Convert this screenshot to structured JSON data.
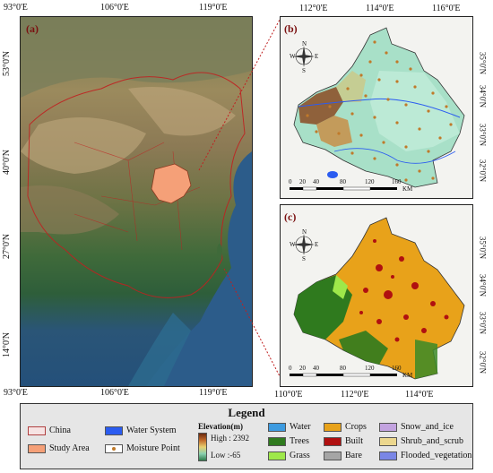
{
  "map_a": {
    "label": "(a)",
    "lon_ticks_top": [
      "93°0'E",
      "106°0'E",
      "119°0'E"
    ],
    "lon_ticks_bottom": [
      "93°0'E",
      "106°0'E",
      "119°0'E"
    ],
    "lat_ticks": [
      "53°0'N",
      "40°0'N",
      "27°0'N",
      "14°0'N"
    ]
  },
  "map_b": {
    "label": "(b)",
    "lon_ticks_top": [
      "112°0'E",
      "114°0'E",
      "116°0'E"
    ],
    "lat_ticks_right": [
      "35°0'N",
      "34°0'N",
      "33°0'N",
      "32°0'N"
    ],
    "scale_ticks": [
      "0",
      "20",
      "40",
      "80",
      "120",
      "160"
    ],
    "scale_unit": "KM"
  },
  "map_c": {
    "label": "(c)",
    "lon_ticks_bottom": [
      "110°0'E",
      "112°0'E",
      "114°0'E"
    ],
    "lat_ticks_right": [
      "35°0'N",
      "34°0'N",
      "33°0'N",
      "32°0'N"
    ],
    "scale_ticks": [
      "0",
      "20",
      "40",
      "80",
      "120",
      "160"
    ],
    "scale_unit": "KM"
  },
  "compass": {
    "n": "N",
    "s": "S",
    "e": "E",
    "w": "W"
  },
  "legend": {
    "title": "Legend",
    "china": "China",
    "study_area": "Study Area",
    "water_system": "Water System",
    "moisture_point": "Moisture Point",
    "elevation_title": "Elevation(m)",
    "elevation_high": "High : 2392",
    "elevation_low": "Low :-65",
    "water": "Water",
    "trees": "Trees",
    "grass": "Grass",
    "crops": "Crops",
    "built": "Built",
    "bare": "Bare",
    "snow_and_ice": "Snow_and_ice",
    "shrub_and_scrub": "Shrub_and_scrub",
    "flooded_vegetation": "Flooded_vegetation"
  },
  "colors": {
    "china_fill": "#f6e3e3",
    "study_area": "#f5a078",
    "water_system": "#2b5cf0",
    "water": "#3d9be0",
    "trees": "#2f7a1e",
    "grass": "#9ee84a",
    "crops": "#e8a21a",
    "built": "#b01010",
    "bare": "#a5a5a5",
    "snow_and_ice": "#c3a3e0",
    "shrub_and_scrub": "#ecd78e",
    "flooded_vegetation": "#7a86e6"
  }
}
